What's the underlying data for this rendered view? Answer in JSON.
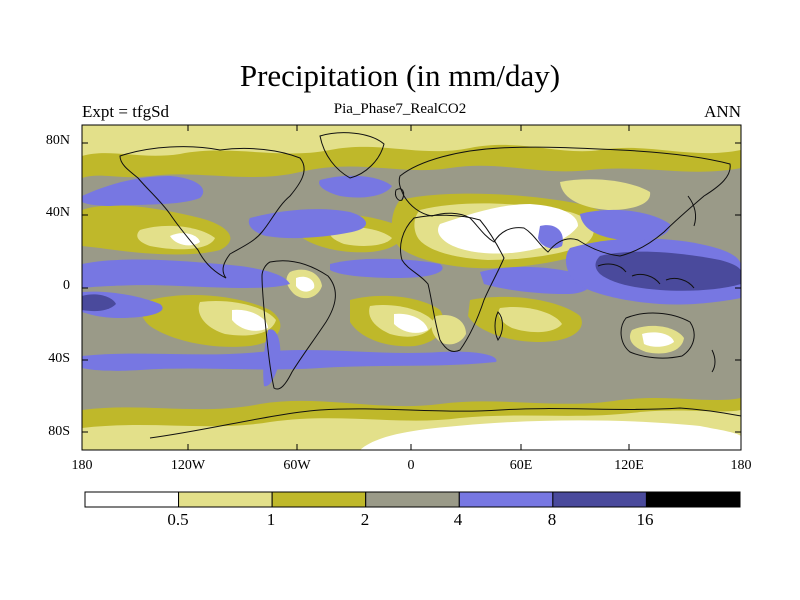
{
  "title": "Precipitation (in mm/day)",
  "left_label": "Expt = tfgSd",
  "center_label": "Pia_Phase7_RealCO2",
  "right_label": "ANN",
  "lat_ticks": [
    "80N",
    "40N",
    "0",
    "40S",
    "80S"
  ],
  "lon_ticks": [
    "180",
    "120W",
    "60W",
    "0",
    "60E",
    "120E",
    "180"
  ],
  "colorbar": {
    "colors": [
      "#ffffff",
      "#e3e08a",
      "#bfb82a",
      "#9a9a88",
      "#7777e2",
      "#4a4a9c",
      "#000000"
    ],
    "labels": [
      "0.5",
      "1",
      "2",
      "4",
      "8",
      "16"
    ]
  },
  "map_colors": {
    "ocean_base": "#9a9a88",
    "very_dry": "#ffffff",
    "dry": "#e3e08a",
    "moderate": "#bfb82a",
    "wet": "#7777e2",
    "very_wet": "#4a4a9c",
    "coastline": "#111111"
  }
}
